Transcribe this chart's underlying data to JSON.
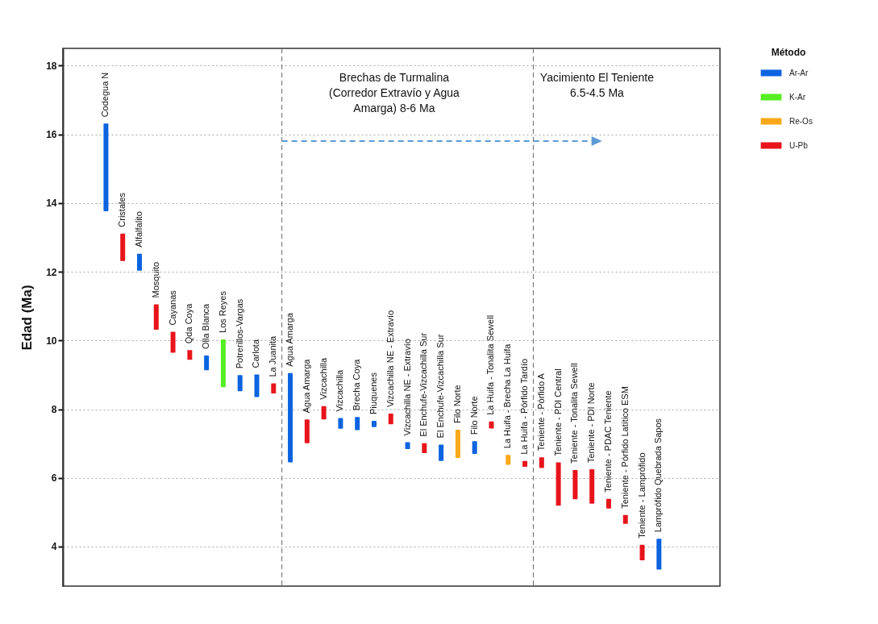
{
  "chart_data": {
    "type": "bar",
    "ylabel": "Edad (Ma)",
    "legend_title": "Método",
    "legend": "right",
    "grid": "y",
    "tick_labels": "y",
    "categories": [
      "Codegua N",
      "Cristales",
      "Alfalfalito",
      "Mosquito",
      "Cayanas",
      "Qda Coya",
      "Olla Blanca",
      "Los Reyes",
      "Potrerillos-Vargas",
      "Carlota",
      "La Juanita",
      "Agua Amarga",
      "Agua Amarga",
      "Vizcachilla",
      "Vizcachilla",
      "Brecha Coya",
      "Piuquenes",
      "Vizcachilla NE - Extravío",
      "Vizcachilla NE - Extravío",
      "El Enchufe-Vizcachilla Sur",
      "El Enchufe-Vizcachilla Sur",
      "Filo Norte",
      "Filo Norte",
      "La Huifa - Tonalita Sewell",
      "La Huifa - Brecha La Huifa",
      "La Huifa - Pórfido Tardío",
      "Teniente - Pórfido A",
      "Teniente - PDI Central",
      "Teniente - Tonalita Sewell",
      "Teniente - PDI Norte",
      "Teniente - PDAC Teniente",
      "Teniente - Pórfido Latítico ESM",
      "Teniente - Lamprófido",
      "Lamprófido Quebrada Sapos"
    ],
    "series": [
      {
        "name": "Ar-Ar",
        "color": "#0b63e0",
        "base": [
          13.76,
          null,
          12.03,
          null,
          null,
          null,
          9.13,
          null,
          8.52,
          8.35,
          null,
          6.45,
          null,
          null,
          7.43,
          7.39,
          7.48,
          null,
          6.84,
          null,
          6.49,
          null,
          6.7,
          null,
          null,
          null,
          null,
          null,
          null,
          null,
          null,
          null,
          null,
          3.33
        ],
        "values": [
          2.55,
          null,
          0.49,
          null,
          null,
          null,
          0.43,
          null,
          0.47,
          0.66,
          null,
          2.6,
          null,
          null,
          0.31,
          0.38,
          0.18,
          null,
          0.2,
          null,
          0.48,
          null,
          0.37,
          null,
          null,
          null,
          null,
          null,
          null,
          null,
          null,
          null,
          null,
          0.9
        ]
      },
      {
        "name": "K-Ar",
        "color": "#55ee22",
        "base": [
          null,
          null,
          null,
          null,
          null,
          null,
          null,
          8.64,
          null,
          null,
          null,
          null,
          null,
          null,
          null,
          null,
          null,
          null,
          null,
          null,
          null,
          null,
          null,
          null,
          null,
          null,
          null,
          null,
          null,
          null,
          null,
          null,
          null,
          null
        ],
        "values": [
          null,
          null,
          null,
          null,
          null,
          null,
          null,
          1.39,
          null,
          null,
          null,
          null,
          null,
          null,
          null,
          null,
          null,
          null,
          null,
          null,
          null,
          null,
          null,
          null,
          null,
          null,
          null,
          null,
          null,
          null,
          null,
          null,
          null,
          null
        ]
      },
      {
        "name": "Re-Os",
        "color": "#f9a81a",
        "base": [
          null,
          null,
          null,
          null,
          null,
          null,
          null,
          null,
          null,
          null,
          null,
          null,
          null,
          null,
          null,
          null,
          null,
          null,
          null,
          null,
          null,
          6.58,
          null,
          null,
          6.38,
          null,
          null,
          null,
          null,
          null,
          null,
          null,
          null,
          null
        ],
        "values": [
          null,
          null,
          null,
          null,
          null,
          null,
          null,
          null,
          null,
          null,
          null,
          null,
          null,
          null,
          null,
          null,
          null,
          null,
          null,
          null,
          null,
          0.82,
          null,
          null,
          0.29,
          null,
          null,
          null,
          null,
          null,
          null,
          null,
          null,
          null
        ]
      },
      {
        "name": "U-Pb",
        "color": "#e8141c",
        "base": [
          null,
          12.31,
          null,
          10.31,
          9.64,
          9.44,
          null,
          null,
          null,
          null,
          8.46,
          null,
          7.01,
          7.7,
          null,
          null,
          null,
          7.56,
          null,
          6.72,
          null,
          null,
          null,
          7.44,
          null,
          6.32,
          6.29,
          5.19,
          5.38,
          5.25,
          5.11,
          4.66,
          3.6,
          null
        ],
        "values": [
          null,
          0.8,
          null,
          0.74,
          0.61,
          0.28,
          null,
          null,
          null,
          null,
          0.29,
          null,
          0.69,
          0.39,
          null,
          null,
          null,
          0.31,
          null,
          0.29,
          null,
          null,
          null,
          0.2,
          null,
          0.17,
          0.31,
          1.26,
          0.85,
          1.0,
          0.28,
          0.26,
          0.45,
          null
        ]
      }
    ],
    "ylim": [
      2.85,
      18.5
    ],
    "yticks": [
      4,
      6,
      8,
      10,
      12,
      14,
      16,
      18
    ],
    "annotations": [
      "Brechas de Turmalina\n(Corredor Extravío y Agua\nAmarga) 8-6 Ma",
      "Yacimiento El Teniente\n6.5-4.5 Ma"
    ]
  }
}
